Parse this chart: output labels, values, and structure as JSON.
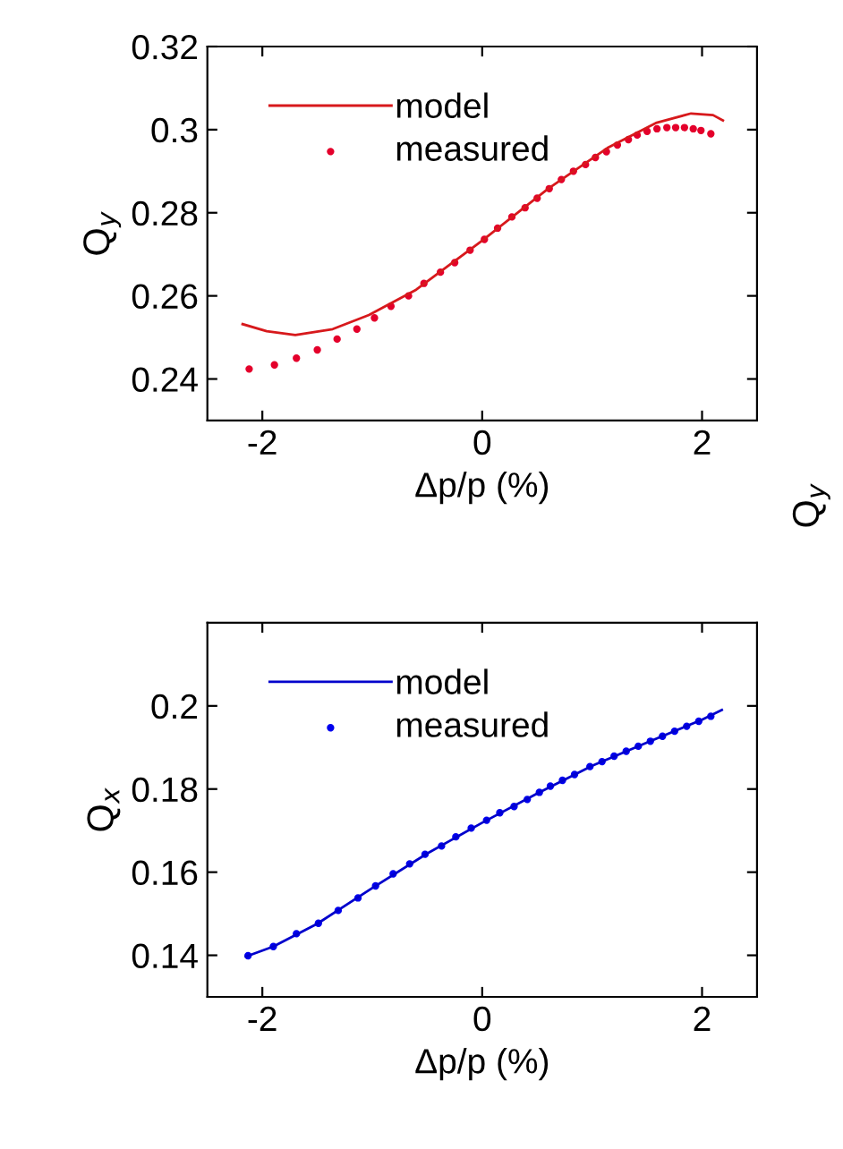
{
  "chart_data": [
    {
      "type": "line",
      "xlabel": "Δp/p (%)",
      "ylabel": "Q$_{y}$",
      "xlim": [
        -2.5,
        2.5
      ],
      "ylim": [
        0.23,
        0.32
      ],
      "xticks": [
        -2,
        0,
        2
      ],
      "yticks": [
        0.24,
        0.26,
        0.28,
        0.3,
        0.32
      ],
      "grid": false,
      "legend": "top left",
      "annotations": [
        "Q$_{y}$"
      ],
      "series": [
        {
          "name": "model",
          "color": "#d7191c",
          "marker": "none",
          "line_style": "solid",
          "x": [
            -2.18,
            -1.96,
            -1.7,
            -1.36,
            -1.03,
            -0.6,
            0,
            0.6,
            1.14,
            1.58,
            1.9,
            2.1,
            2.19
          ],
          "values": [
            0.2532,
            0.2515,
            0.2506,
            0.252,
            0.2554,
            0.2615,
            0.2733,
            0.2858,
            0.2956,
            0.3016,
            0.3039,
            0.3035,
            0.3022
          ]
        },
        {
          "name": "measured",
          "type": "scatter",
          "color": "#e4002b",
          "marker": "circle",
          "x": [
            -2.12,
            -1.89,
            -1.69,
            -1.5,
            -1.32,
            -1.14,
            -0.98,
            -0.83,
            -0.67,
            -0.53,
            -0.38,
            -0.25,
            -0.11,
            0.02,
            0.14,
            0.27,
            0.39,
            0.5,
            0.61,
            0.72,
            0.83,
            0.94,
            1.03,
            1.13,
            1.23,
            1.33,
            1.41,
            1.5,
            1.59,
            1.68,
            1.76,
            1.84,
            1.92,
            1.99,
            2.08
          ],
          "values": [
            0.2424,
            0.2434,
            0.245,
            0.247,
            0.2496,
            0.252,
            0.2547,
            0.2575,
            0.26,
            0.263,
            0.2657,
            0.268,
            0.271,
            0.2736,
            0.2763,
            0.279,
            0.2812,
            0.2835,
            0.2858,
            0.288,
            0.29,
            0.2916,
            0.2933,
            0.2947,
            0.2963,
            0.2976,
            0.2987,
            0.2996,
            0.3002,
            0.3005,
            0.3005,
            0.3005,
            0.3002,
            0.2998,
            0.299
          ]
        }
      ]
    },
    {
      "type": "line",
      "xlabel": "Δp/p (%)",
      "ylabel": "Q$_{x}$",
      "xlim": [
        -2.5,
        2.5
      ],
      "ylim": [
        0.13,
        0.22
      ],
      "xticks": [
        -2,
        0,
        2
      ],
      "yticks": [
        0.14,
        0.16,
        0.18,
        0.2
      ],
      "grid": false,
      "legend": "top left",
      "series": [
        {
          "name": "model",
          "color": "#0000cc",
          "marker": "none",
          "line_style": "solid",
          "x": [
            -2.15,
            -1.9,
            -1.5,
            -1.0,
            -0.5,
            0,
            0.5,
            1.0,
            1.5,
            2.0,
            2.18
          ],
          "values": [
            0.1397,
            0.1421,
            0.1476,
            0.1562,
            0.1645,
            0.1719,
            0.1789,
            0.1856,
            0.1912,
            0.1967,
            0.199
          ]
        },
        {
          "name": "measured",
          "type": "scatter",
          "color": "#0000ee",
          "marker": "circle",
          "x": [
            -2.13,
            -1.9,
            -1.69,
            -1.49,
            -1.31,
            -1.13,
            -0.97,
            -0.81,
            -0.66,
            -0.52,
            -0.37,
            -0.24,
            -0.1,
            0.04,
            0.16,
            0.29,
            0.41,
            0.52,
            0.62,
            0.73,
            0.84,
            0.98,
            1.09,
            1.2,
            1.31,
            1.42,
            1.53,
            1.64,
            1.75,
            1.86,
            1.97,
            2.08
          ],
          "values": [
            0.1399,
            0.1421,
            0.1452,
            0.1477,
            0.1508,
            0.1538,
            0.1567,
            0.1596,
            0.162,
            0.1643,
            0.1663,
            0.1685,
            0.1706,
            0.1725,
            0.1743,
            0.1758,
            0.1775,
            0.1792,
            0.1807,
            0.1821,
            0.1835,
            0.1854,
            0.1866,
            0.1879,
            0.1891,
            0.1903,
            0.1915,
            0.1927,
            0.1939,
            0.1951,
            0.1963,
            0.1975
          ]
        }
      ]
    }
  ]
}
